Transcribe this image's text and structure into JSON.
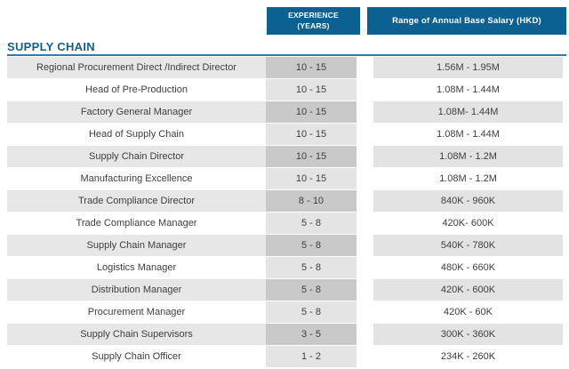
{
  "header": {
    "experience_line1": "EXPERIENCE",
    "experience_line2": "(YEARS)",
    "salary_label": "Range of Annual Base Salary (HKD)"
  },
  "section": {
    "title": "SUPPLY CHAIN"
  },
  "colors": {
    "header_bg": "#0b6191",
    "header_text": "#ffffff",
    "section_title": "#15608c",
    "rule": "#2e7cad",
    "odd_row_bg": "#e7e7e7",
    "odd_exp_bg": "#c9c9c9",
    "even_exp_bg": "#e4e4e4",
    "body_text": "#3e3e3e"
  },
  "table": {
    "rows": [
      {
        "role": "Regional Procurement Direct /Indirect Director",
        "experience": "10 - 15",
        "salary": "1.56M - 1.95M"
      },
      {
        "role": "Head of Pre-Production",
        "experience": "10 - 15",
        "salary": "1.08M - 1.44M"
      },
      {
        "role": "Factory General Manager",
        "experience": "10 - 15",
        "salary": "1.08M- 1.44M"
      },
      {
        "role": "Head of Supply Chain",
        "experience": "10 - 15",
        "salary": "1.08M - 1.44M"
      },
      {
        "role": "Supply Chain Director",
        "experience": "10 - 15",
        "salary": "1.08M - 1.2M"
      },
      {
        "role": "Manufacturing Excellence",
        "experience": "10 - 15",
        "salary": "1.08M - 1.2M"
      },
      {
        "role": "Trade Compliance Director",
        "experience": "8 - 10",
        "salary": "840K - 960K"
      },
      {
        "role": "Trade Compliance Manager",
        "experience": "5 - 8",
        "salary": "420K- 600K"
      },
      {
        "role": "Supply Chain Manager",
        "experience": "5 - 8",
        "salary": "540K - 780K"
      },
      {
        "role": "Logistics Manager",
        "experience": "5 - 8",
        "salary": "480K - 660K"
      },
      {
        "role": "Distribution Manager",
        "experience": "5 - 8",
        "salary": "420K - 600K"
      },
      {
        "role": "Procurement Manager",
        "experience": "5 - 8",
        "salary": "420K - 60K"
      },
      {
        "role": "Supply Chain Supervisors",
        "experience": "3 - 5",
        "salary": "300K - 360K"
      },
      {
        "role": "Supply Chain Officer",
        "experience": "1 - 2",
        "salary": "234K - 260K"
      }
    ]
  }
}
